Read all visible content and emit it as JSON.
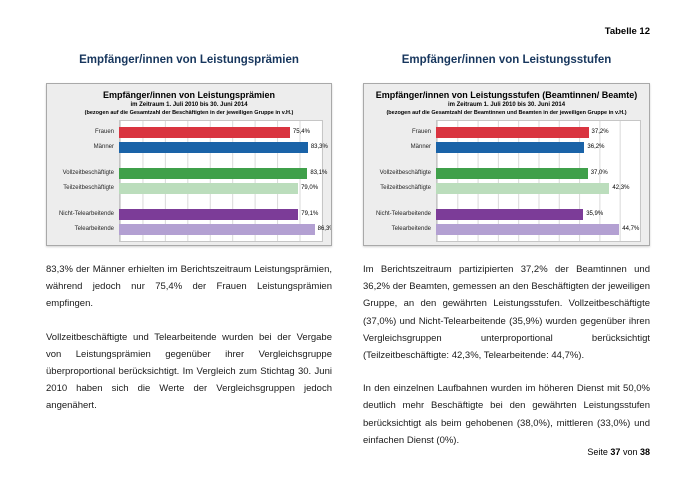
{
  "page": {
    "header_label": "Tabelle 12",
    "heading_color": "#17365D",
    "footer": {
      "prefix": "Seite",
      "page_number": "37",
      "separator": "von",
      "total_pages": "38"
    }
  },
  "left_section": {
    "heading": "Empfänger/innen von Leistungsprämien",
    "paragraphs": [
      "83,3% der Männer erhielten im Berichtszeitraum Leistungsprä­mien, während jedoch nur 75,4% der Frauen Leistungsprämien empfingen.",
      "Vollzeitbeschäftigte und Telearbeitende wurden bei der Verga­be von Leistungsprämien gegenüber ihrer Vergleichsgruppe überproportional berücksichtigt. Im Vergleich zum Stichtag 30. Juni 2010 haben sich die Werte der Vergleichsgruppen je­doch angenähert."
    ]
  },
  "right_section": {
    "heading": "Empfänger/innen von Leistungsstufen",
    "paragraphs": [
      "Im Berichtszeitraum partizipierten 37,2% der Beamtinnen und 36,2% der Beamten, gemessen an den Beschäftigten der je­weiligen Gruppe, an den gewährten Leistungsstufen. Vollzeit­beschäftigte (37,0%) und Nicht-Telearbeitende (35,9%) wurden gegenüber ihren Vergleichsgruppen unterproportional berück­sichtigt (Teilzeitbeschäftigte: 42,3%, Telearbeitende: 44,7%).",
      "In den einzelnen Laufbahnen wurden im höheren Dienst mit 50,0% deutlich mehr Beschäftigte bei den gewährten Leis­tungsstufen berücksichtigt als beim gehobenen (38,0%), mittle­ren (33,0%) und einfachen Dienst (0%)."
    ]
  },
  "chart_data": [
    {
      "type": "bar",
      "orientation": "horizontal",
      "title": "Empfänger/innen von Leistungsprämien",
      "subtitle1": "im Zeitraum 1. Juli 2010 bis 30. Juni 2014",
      "subtitle2": "(bezogen auf die Gesamtzahl der Beschäftigten in der jeweiligen Gruppe in v.H.)",
      "categories": [
        "Frauen",
        "Männer",
        "Vollzeitbeschäftigte",
        "Teilzeitbeschäftigte",
        "Nicht-Telearbeitende",
        "Telearbeitende"
      ],
      "values": [
        75.4,
        83.3,
        83.1,
        79.0,
        79.1,
        86.3
      ],
      "value_labels": [
        "75,4%",
        "83,3%",
        "83,1%",
        "79,0%",
        "79,1%",
        "86,3%"
      ],
      "colors": [
        "#D93440",
        "#1A63A8",
        "#3FA04A",
        "#BBDDBC",
        "#7C3C98",
        "#B3A0D2"
      ],
      "xlim": [
        0,
        90
      ],
      "grid_columns": 9,
      "group_starts": [
        2,
        4
      ],
      "legend": "none",
      "axis_tick_labels": "none"
    },
    {
      "type": "bar",
      "orientation": "horizontal",
      "title": "Empfänger/innen von Leistungsstufen (Beamtinnen/ Beamte)",
      "subtitle1": "im Zeitraum 1. Juli 2010 bis 30. Juni 2014",
      "subtitle2": "(bezogen auf die Gesamtzahl der Beamtinnen und Beamten in der jeweiligen Gruppe in v.H.)",
      "categories": [
        "Frauen",
        "Männer",
        "Vollzeitbeschäftigte",
        "Teilzeitbeschäftigte",
        "Nicht-Telearbeitende",
        "Telearbeitende"
      ],
      "values": [
        37.2,
        36.2,
        37.0,
        42.3,
        35.9,
        44.7
      ],
      "value_labels": [
        "37,2%",
        "36,2%",
        "37,0%",
        "42,3%",
        "35,9%",
        "44,7%"
      ],
      "colors": [
        "#D93440",
        "#1A63A8",
        "#3FA04A",
        "#BBDDBC",
        "#7C3C98",
        "#B3A0D2"
      ],
      "xlim": [
        0,
        50
      ],
      "grid_columns": 10,
      "group_starts": [
        2,
        4
      ],
      "legend": "none",
      "axis_tick_labels": "none"
    }
  ]
}
